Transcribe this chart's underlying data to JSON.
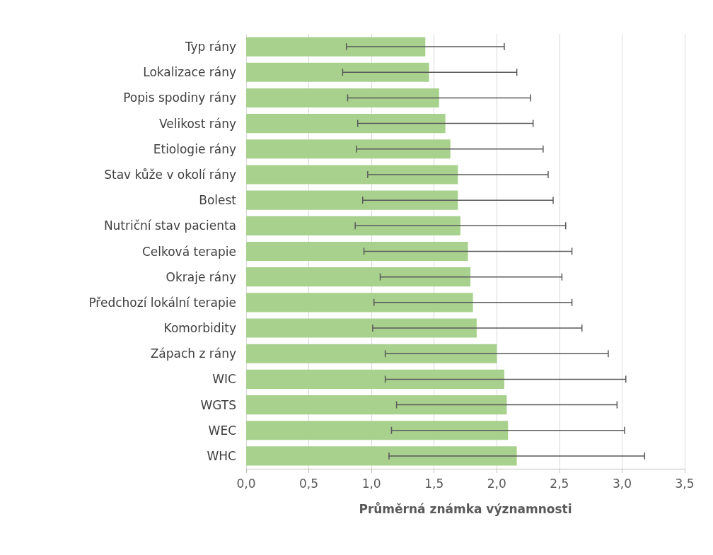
{
  "chart_data": {
    "type": "bar",
    "orientation": "horizontal",
    "xlabel": "Průměrná známka významnosti",
    "categories": [
      "Typ rány",
      "Lokalizace rány",
      "Popis spodiny rány",
      "Velikost rány",
      "Etiologie rány",
      "Stav kůže v okolí rány",
      "Bolest",
      "Nutriční stav pacienta",
      "Celková terapie",
      "Okraje rány",
      "Předchozí lokální terapie",
      "Komorbidity",
      "Zápach z rány",
      "WIC",
      "WGTS",
      "WEC",
      "WHC"
    ],
    "values": [
      1.43,
      1.46,
      1.54,
      1.59,
      1.63,
      1.69,
      1.69,
      1.71,
      1.77,
      1.79,
      1.81,
      1.84,
      2.0,
      2.06,
      2.08,
      2.09,
      2.16
    ],
    "errors": [
      [
        0.8,
        2.06
      ],
      [
        0.77,
        2.16
      ],
      [
        0.81,
        2.27
      ],
      [
        0.89,
        2.29
      ],
      [
        0.88,
        2.37
      ],
      [
        0.97,
        2.41
      ],
      [
        0.93,
        2.45
      ],
      [
        0.87,
        2.55
      ],
      [
        0.94,
        2.6
      ],
      [
        1.07,
        2.52
      ],
      [
        1.02,
        2.6
      ],
      [
        1.01,
        2.68
      ],
      [
        1.11,
        2.89
      ],
      [
        1.11,
        3.03
      ],
      [
        1.2,
        2.96
      ],
      [
        1.16,
        3.02
      ],
      [
        1.14,
        3.18
      ]
    ],
    "color": "#a9d18e",
    "xlim": [
      0,
      3.5
    ],
    "xticks": [
      {
        "value": 0,
        "label": "0,0"
      },
      {
        "value": 0.5,
        "label": "0,5"
      },
      {
        "value": 1,
        "label": "1,0"
      },
      {
        "value": 1.5,
        "label": "1,5"
      },
      {
        "value": 2,
        "label": "2,0"
      },
      {
        "value": 2.5,
        "label": "2,5"
      },
      {
        "value": 3,
        "label": "3,0"
      },
      {
        "value": 3.5,
        "label": "3,5"
      }
    ],
    "grid": "x"
  }
}
